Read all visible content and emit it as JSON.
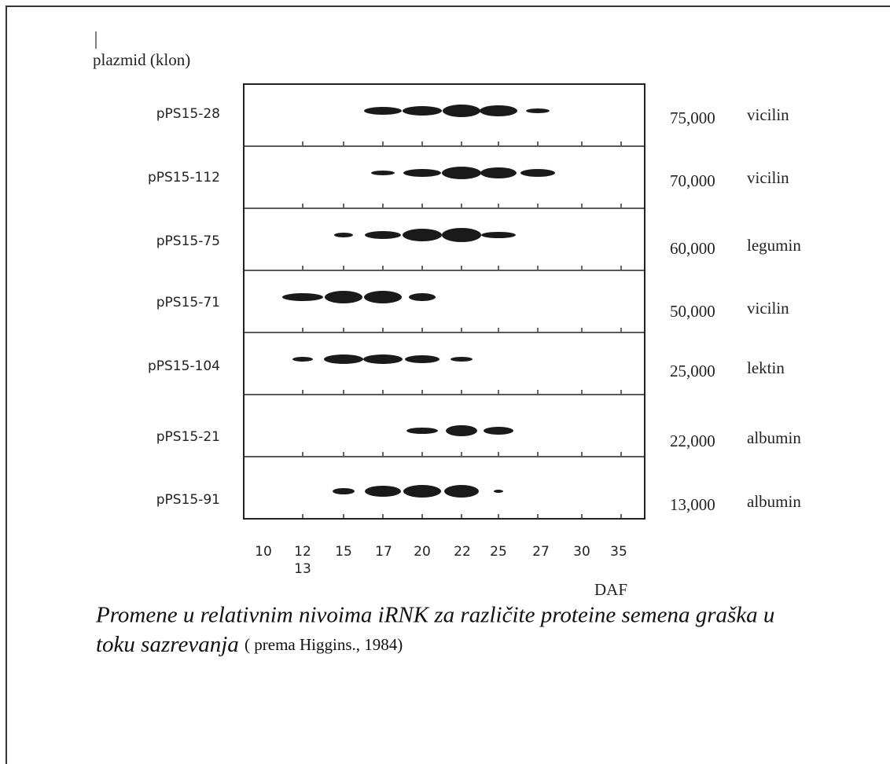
{
  "header": "plazmid (klon)",
  "rows": [
    {
      "clone": "pPS15-28",
      "size": "75,000",
      "protein": "vicilin"
    },
    {
      "clone": "pPS15-112",
      "size": "70,000",
      "protein": "vicilin"
    },
    {
      "clone": "pPS15-75",
      "size": "60,000",
      "protein": "legumin"
    },
    {
      "clone": "pPS15-71",
      "size": "50,000",
      "protein": "vicilin"
    },
    {
      "clone": "pPS15-104",
      "size": "25,000",
      "protein": "lektin"
    },
    {
      "clone": "pPS15-21",
      "size": "22,000",
      "protein": "albumin"
    },
    {
      "clone": "pPS15-91",
      "size": "13,000",
      "protein": "albumin"
    }
  ],
  "x_axis": {
    "labels": [
      "10",
      "12",
      "13",
      "15",
      "17",
      "20",
      "22",
      "25",
      "27",
      "30",
      "35"
    ],
    "title": "DAF"
  },
  "caption": {
    "lines": [
      "Promene u relativnim nivoima iRNK za različite proteine semena graška u",
      "toku sazrevanja"
    ],
    "source": "( prema Higgins., 1984)"
  }
}
